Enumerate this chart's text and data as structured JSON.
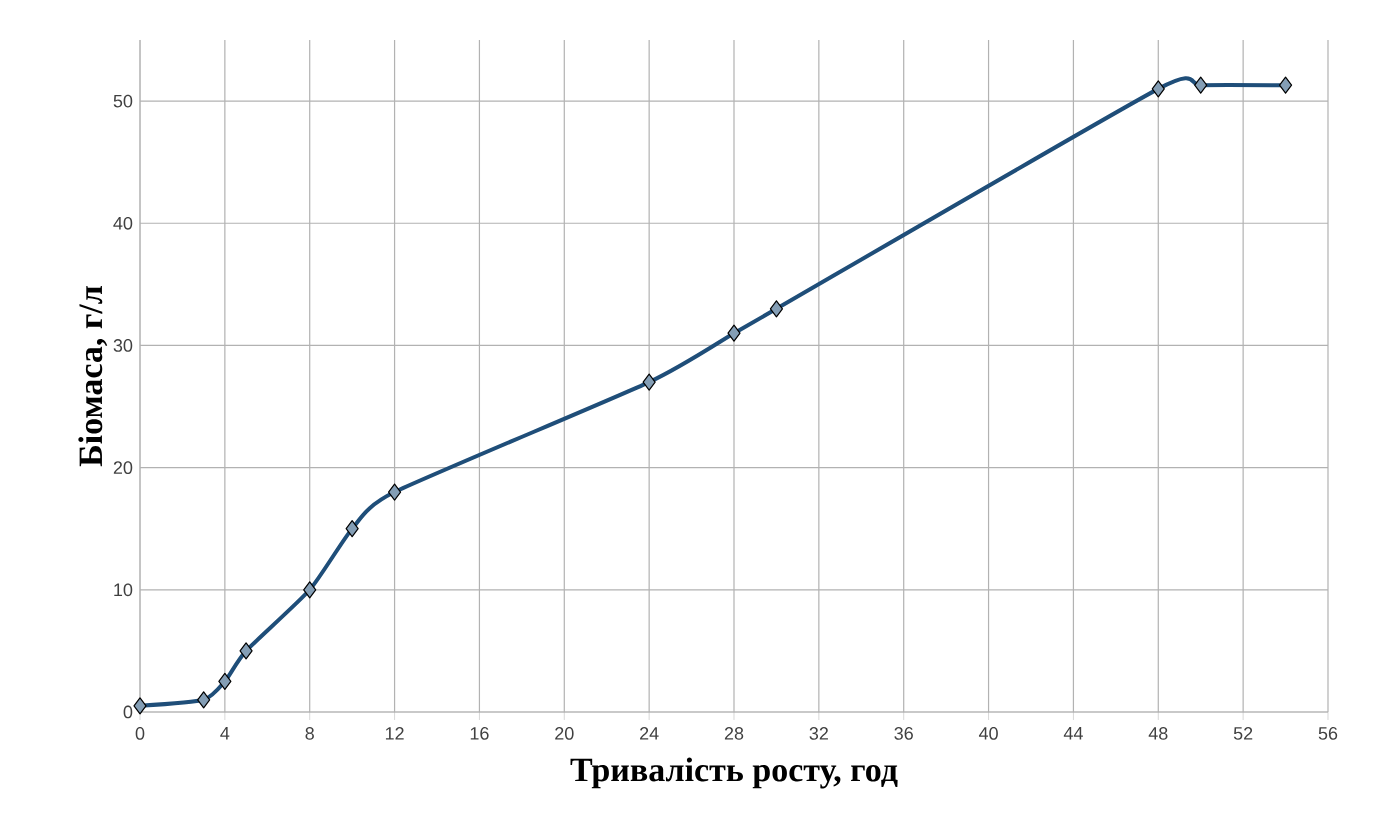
{
  "chart_data": {
    "type": "line",
    "xlabel": "Тривалість росту, год",
    "ylabel": "Біомаса, г/л",
    "x": [
      0,
      3,
      4,
      5,
      8,
      10,
      12,
      24,
      28,
      30,
      48,
      50,
      54
    ],
    "series": [
      {
        "color": "#1f4e79",
        "values": [
          0.5,
          1,
          2.5,
          5,
          10,
          15,
          18,
          27,
          31,
          33,
          51,
          51.3,
          51.3
        ]
      }
    ],
    "xlim": [
      0,
      56
    ],
    "xticks": [
      0,
      4,
      8,
      12,
      16,
      20,
      24,
      28,
      32,
      36,
      40,
      44,
      48,
      52,
      56
    ],
    "ylim": [
      0,
      55
    ],
    "yticks": [
      0,
      10,
      20,
      30,
      40,
      50
    ],
    "grid": true,
    "marker": "diamond",
    "line_style": "solid"
  }
}
